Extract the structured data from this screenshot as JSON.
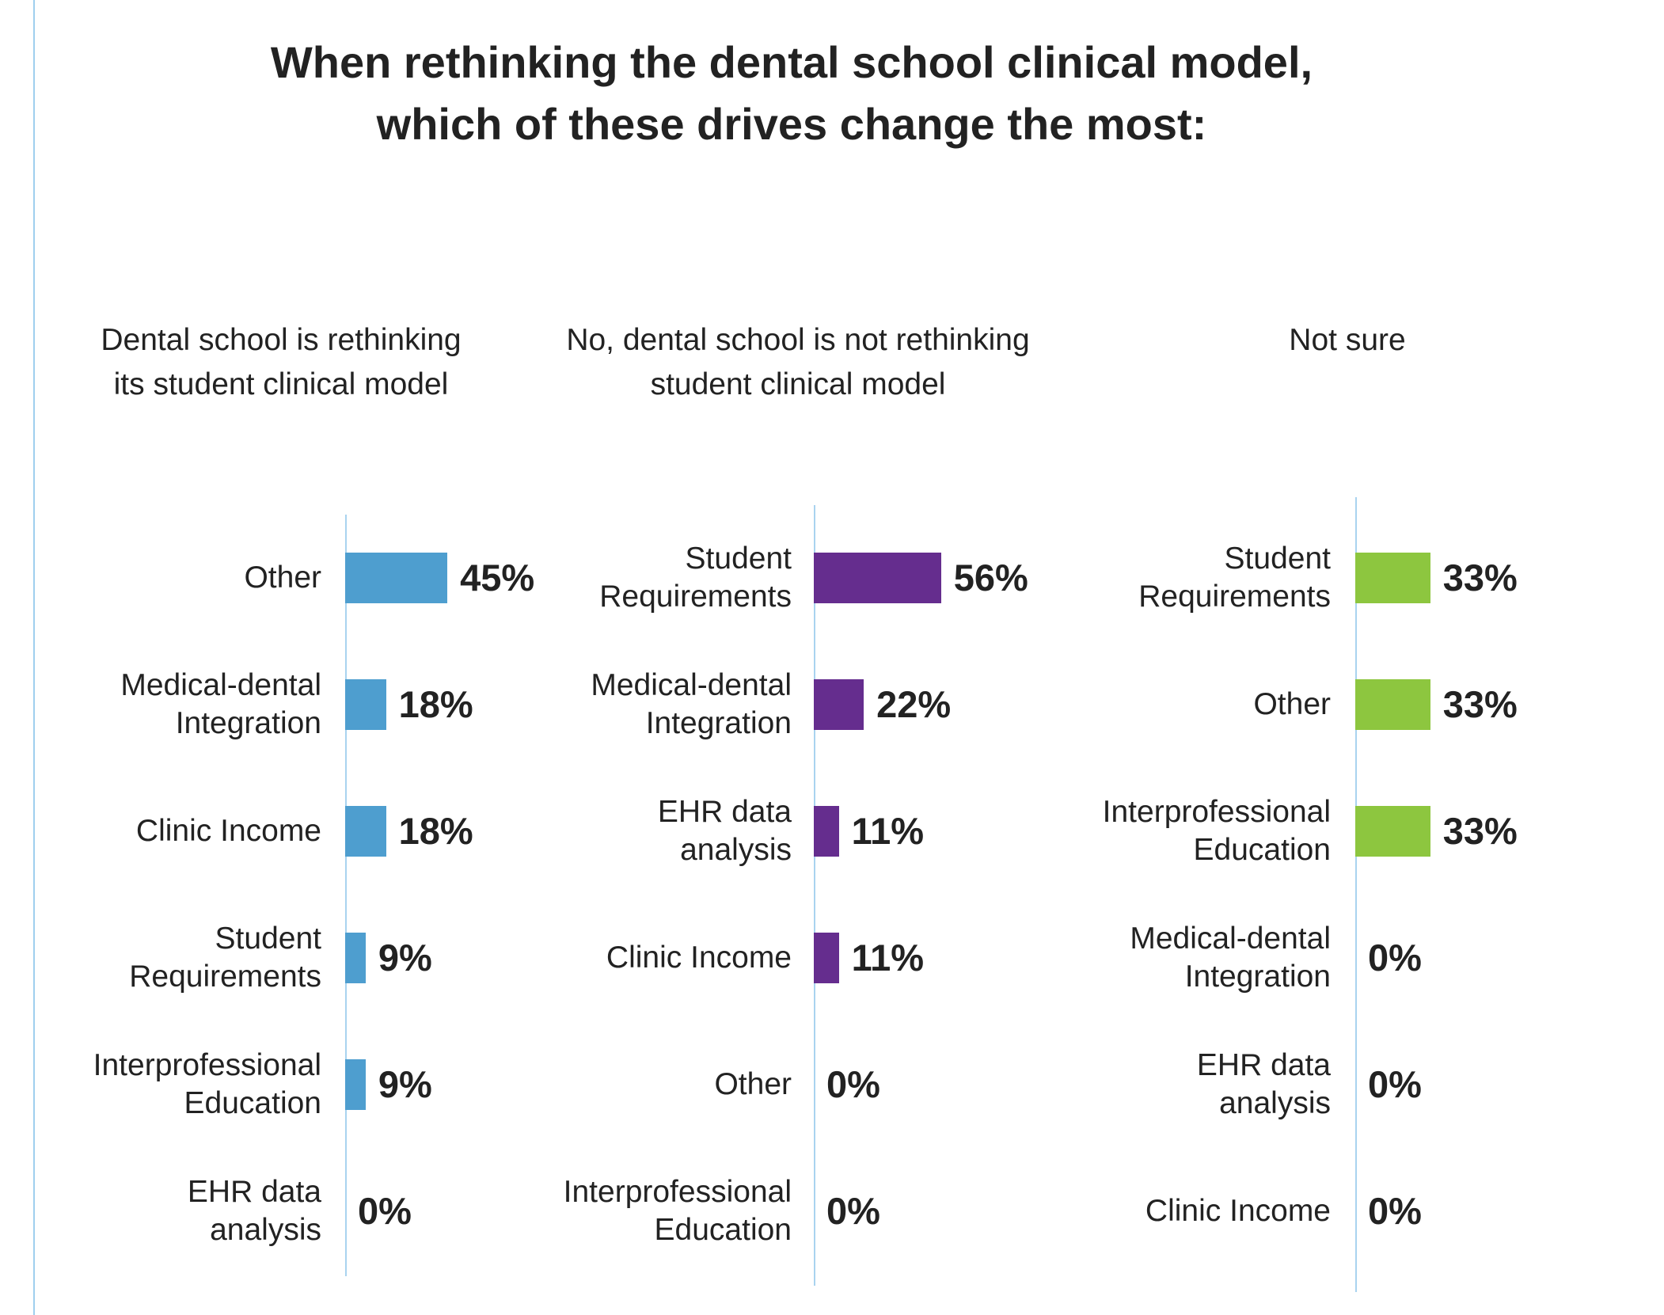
{
  "chart_data": {
    "type": "bar",
    "orientation": "horizontal",
    "title": "When rethinking the dental school clinical model, which of these drives change the most:",
    "title_lines": [
      "When rethinking the dental school clinical model,",
      "which of these drives change the most:"
    ],
    "unit": "%",
    "panels": [
      {
        "title_lines": [
          "Dental school is rethinking",
          "its student clinical model"
        ],
        "color": "#4e9ecf",
        "categories": [
          [
            "Other"
          ],
          [
            "Medical-dental",
            "Integration"
          ],
          [
            "Clinic Income"
          ],
          [
            "Student",
            "Requirements"
          ],
          [
            "Interprofessional",
            "Education"
          ],
          [
            "EHR data",
            "analysis"
          ]
        ],
        "values": [
          45,
          18,
          18,
          9,
          9,
          0
        ],
        "value_labels": [
          "45%",
          "18%",
          "18%",
          "9%",
          "9%",
          "0%"
        ]
      },
      {
        "title_lines": [
          "No, dental school is not rethinking",
          "student clinical model"
        ],
        "color": "#652d8e",
        "categories": [
          [
            "Student",
            "Requirements"
          ],
          [
            "Medical-dental",
            "Integration"
          ],
          [
            "EHR data",
            "analysis"
          ],
          [
            "Clinic Income"
          ],
          [
            "Other"
          ],
          [
            "Interprofessional",
            "Education"
          ]
        ],
        "values": [
          56,
          22,
          11,
          11,
          0,
          0
        ],
        "value_labels": [
          "56%",
          "22%",
          "11%",
          "11%",
          "0%",
          "0%"
        ]
      },
      {
        "title_lines": [
          "Not sure"
        ],
        "color": "#8dc63f",
        "categories": [
          [
            "Student",
            "Requirements"
          ],
          [
            "Other"
          ],
          [
            "Interprofessional",
            "Education"
          ],
          [
            "Medical-dental",
            "Integration"
          ],
          [
            "EHR data",
            "analysis"
          ],
          [
            "Clinic Income"
          ]
        ],
        "values": [
          33,
          33,
          33,
          0,
          0,
          0
        ],
        "value_labels": [
          "33%",
          "33%",
          "33%",
          "0%",
          "0%",
          "0%"
        ]
      }
    ]
  }
}
